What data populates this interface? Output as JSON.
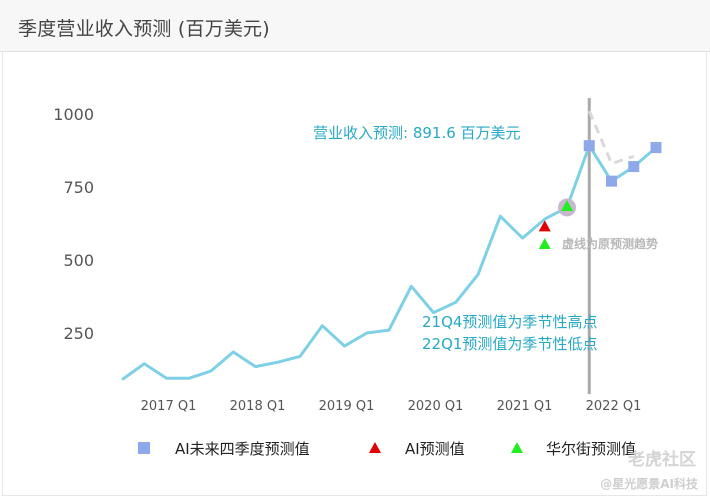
{
  "header": {
    "title": "季度营业收入预测 (百万美元)"
  },
  "chart_data": {
    "type": "line",
    "title": "季度营业收入预测 (百万美元)",
    "xlabel": "",
    "ylabel": "",
    "ylim": [
      0,
      1100
    ],
    "y_ticks": [
      250,
      500,
      750,
      1000
    ],
    "grid": false,
    "x_tick_labels": [
      "2017 Q1",
      "2018 Q1",
      "2019 Q1",
      "2020 Q1",
      "2021 Q1",
      "2022 Q1"
    ],
    "quarters": [
      "2016 Q3",
      "2016 Q4",
      "2017 Q1",
      "2017 Q2",
      "2017 Q3",
      "2017 Q4",
      "2018 Q1",
      "2018 Q2",
      "2018 Q3",
      "2018 Q4",
      "2019 Q1",
      "2019 Q2",
      "2019 Q3",
      "2019 Q4",
      "2020 Q1",
      "2020 Q2",
      "2020 Q3",
      "2020 Q4",
      "2021 Q1",
      "2021 Q2",
      "2021 Q3",
      "2021 Q4",
      "2022 Q1",
      "2022 Q2",
      "2022 Q3"
    ],
    "series": [
      {
        "name": "",
        "color": "#7ed0e6",
        "values": [
          90,
          145,
          95,
          95,
          120,
          185,
          135,
          150,
          170,
          275,
          205,
          250,
          260,
          410,
          320,
          355,
          450,
          650,
          575,
          640,
          680,
          891.6,
          770,
          820,
          885
        ]
      },
      {
        "name": "",
        "color": "#d9d9d9",
        "dashed": true,
        "x": [
          "2021 Q4",
          "2022 Q1",
          "2022 Q2"
        ],
        "values": [
          1010,
          830,
          855
        ]
      }
    ],
    "markers": [
      {
        "name": "AI未来四季度预测值",
        "shape": "square",
        "color": "#8fa8ea",
        "x": [
          "2021 Q4",
          "2022 Q1",
          "2022 Q2",
          "2022 Q3"
        ],
        "values": [
          891.6,
          770,
          820,
          885
        ]
      },
      {
        "name": "AI预测值",
        "shape": "triangle",
        "color": "#e00000",
        "x": [
          "2021 Q2"
        ],
        "values": [
          615
        ]
      },
      {
        "name": "华尔街预测值",
        "shape": "triangle",
        "color": "#22ee22",
        "x": [
          "2021 Q2",
          "2021 Q3"
        ],
        "values": [
          555,
          685
        ]
      }
    ],
    "highlight": {
      "x": "2021 Q3",
      "value": 680,
      "color": "#c9b7cf"
    },
    "forecast_divider": {
      "x": "2021 Q4",
      "color": "#aaaaaa"
    },
    "annotations": {
      "forecast_label": "营业收入预测: 891.6 百万美元",
      "dashed_note": "虚线为原预测趋势",
      "seasonal_note_1": "21Q4预测值为季节性高点",
      "seasonal_note_2": "22Q1预测值为季节性低点"
    },
    "legend": {
      "position": "bottom",
      "items": [
        {
          "label": "AI未来四季度预测值",
          "shape": "square",
          "color": "#8fa8ea"
        },
        {
          "label": "AI预测值",
          "shape": "triangle",
          "color": "#e00000"
        },
        {
          "label": "华尔街预测值",
          "shape": "triangle",
          "color": "#22ee22"
        }
      ]
    }
  },
  "watermark": {
    "main": "老虎社区",
    "sub": "@星光愿景AI科技"
  }
}
